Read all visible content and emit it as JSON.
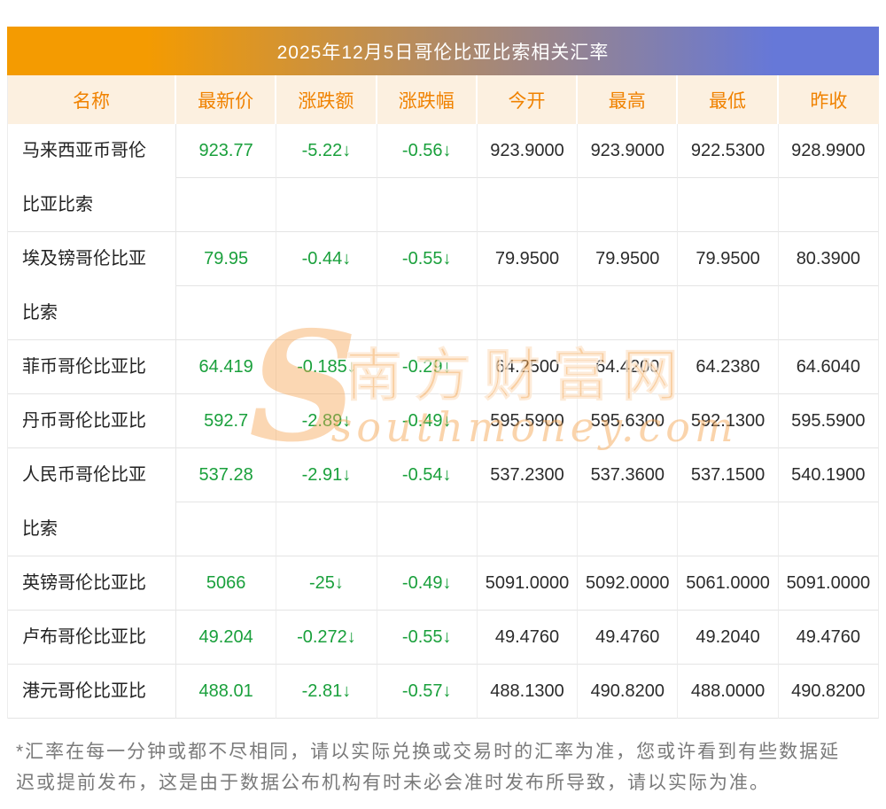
{
  "page": {
    "title": "2025年12月5日哥伦比亚比索相关汇率",
    "footer_lines": [
      "*汇率在每一分钟或都不尽相同，请以实际兑换或交易时的汇率为准，您或许看到有些数据延",
      "迟或提前发布，这是由于数据公布机构有时未必会准时发布所导致，请以实际为准。"
    ]
  },
  "colors": {
    "title_gradient_left": "#f49b01",
    "title_gradient_right": "#6678d8",
    "header_bg": "#fcf0e0",
    "header_text": "#f08200",
    "down_green": "#1aa03c",
    "value_text": "#2b2b2b"
  },
  "watermark": {
    "initial": "S",
    "site_name": "南方财富网",
    "domain": "southmoney.com"
  },
  "table": {
    "headers": [
      "名称",
      "最新价",
      "涨跌额",
      "涨跌幅",
      "今开",
      "最高",
      "最低",
      "昨收"
    ],
    "rows": [
      {
        "name": "马来西亚币哥伦比亚比索",
        "latest": "923.77",
        "change": "-5.22↓",
        "pct": "-0.56↓",
        "open": "923.9000",
        "high": "923.9000",
        "low": "922.5300",
        "prev": "928.9900"
      },
      {
        "name": "埃及镑哥伦比亚比索",
        "latest": "79.95",
        "change": "-0.44↓",
        "pct": "-0.55↓",
        "open": "79.9500",
        "high": "79.9500",
        "low": "79.9500",
        "prev": "80.3900"
      },
      {
        "name": "菲币哥伦比亚比索",
        "latest": "64.419",
        "change": "-0.185↓",
        "pct": "-0.29↓",
        "open": "64.2500",
        "high": "64.4200",
        "low": "64.2380",
        "prev": "64.6040"
      },
      {
        "name": "丹币哥伦比亚比索",
        "latest": "592.7",
        "change": "-2.89↓",
        "pct": "-0.49↓",
        "open": "595.5900",
        "high": "595.6300",
        "low": "592.1300",
        "prev": "595.5900"
      },
      {
        "name": "人民币哥伦比亚比索",
        "latest": "537.28",
        "change": "-2.91↓",
        "pct": "-0.54↓",
        "open": "537.2300",
        "high": "537.3600",
        "low": "537.1500",
        "prev": "540.1900"
      },
      {
        "name": "英镑哥伦比亚比索",
        "latest": "5066",
        "change": "-25↓",
        "pct": "-0.49↓",
        "open": "5091.0000",
        "high": "5092.0000",
        "low": "5061.0000",
        "prev": "5091.0000"
      },
      {
        "name": "卢布哥伦比亚比索",
        "latest": "49.204",
        "change": "-0.272↓",
        "pct": "-0.55↓",
        "open": "49.4760",
        "high": "49.4760",
        "low": "49.2040",
        "prev": "49.4760"
      },
      {
        "name": "港元哥伦比亚比索",
        "latest": "488.01",
        "change": "-2.81↓",
        "pct": "-0.57↓",
        "open": "488.1300",
        "high": "490.8200",
        "low": "488.0000",
        "prev": "490.8200"
      }
    ]
  }
}
